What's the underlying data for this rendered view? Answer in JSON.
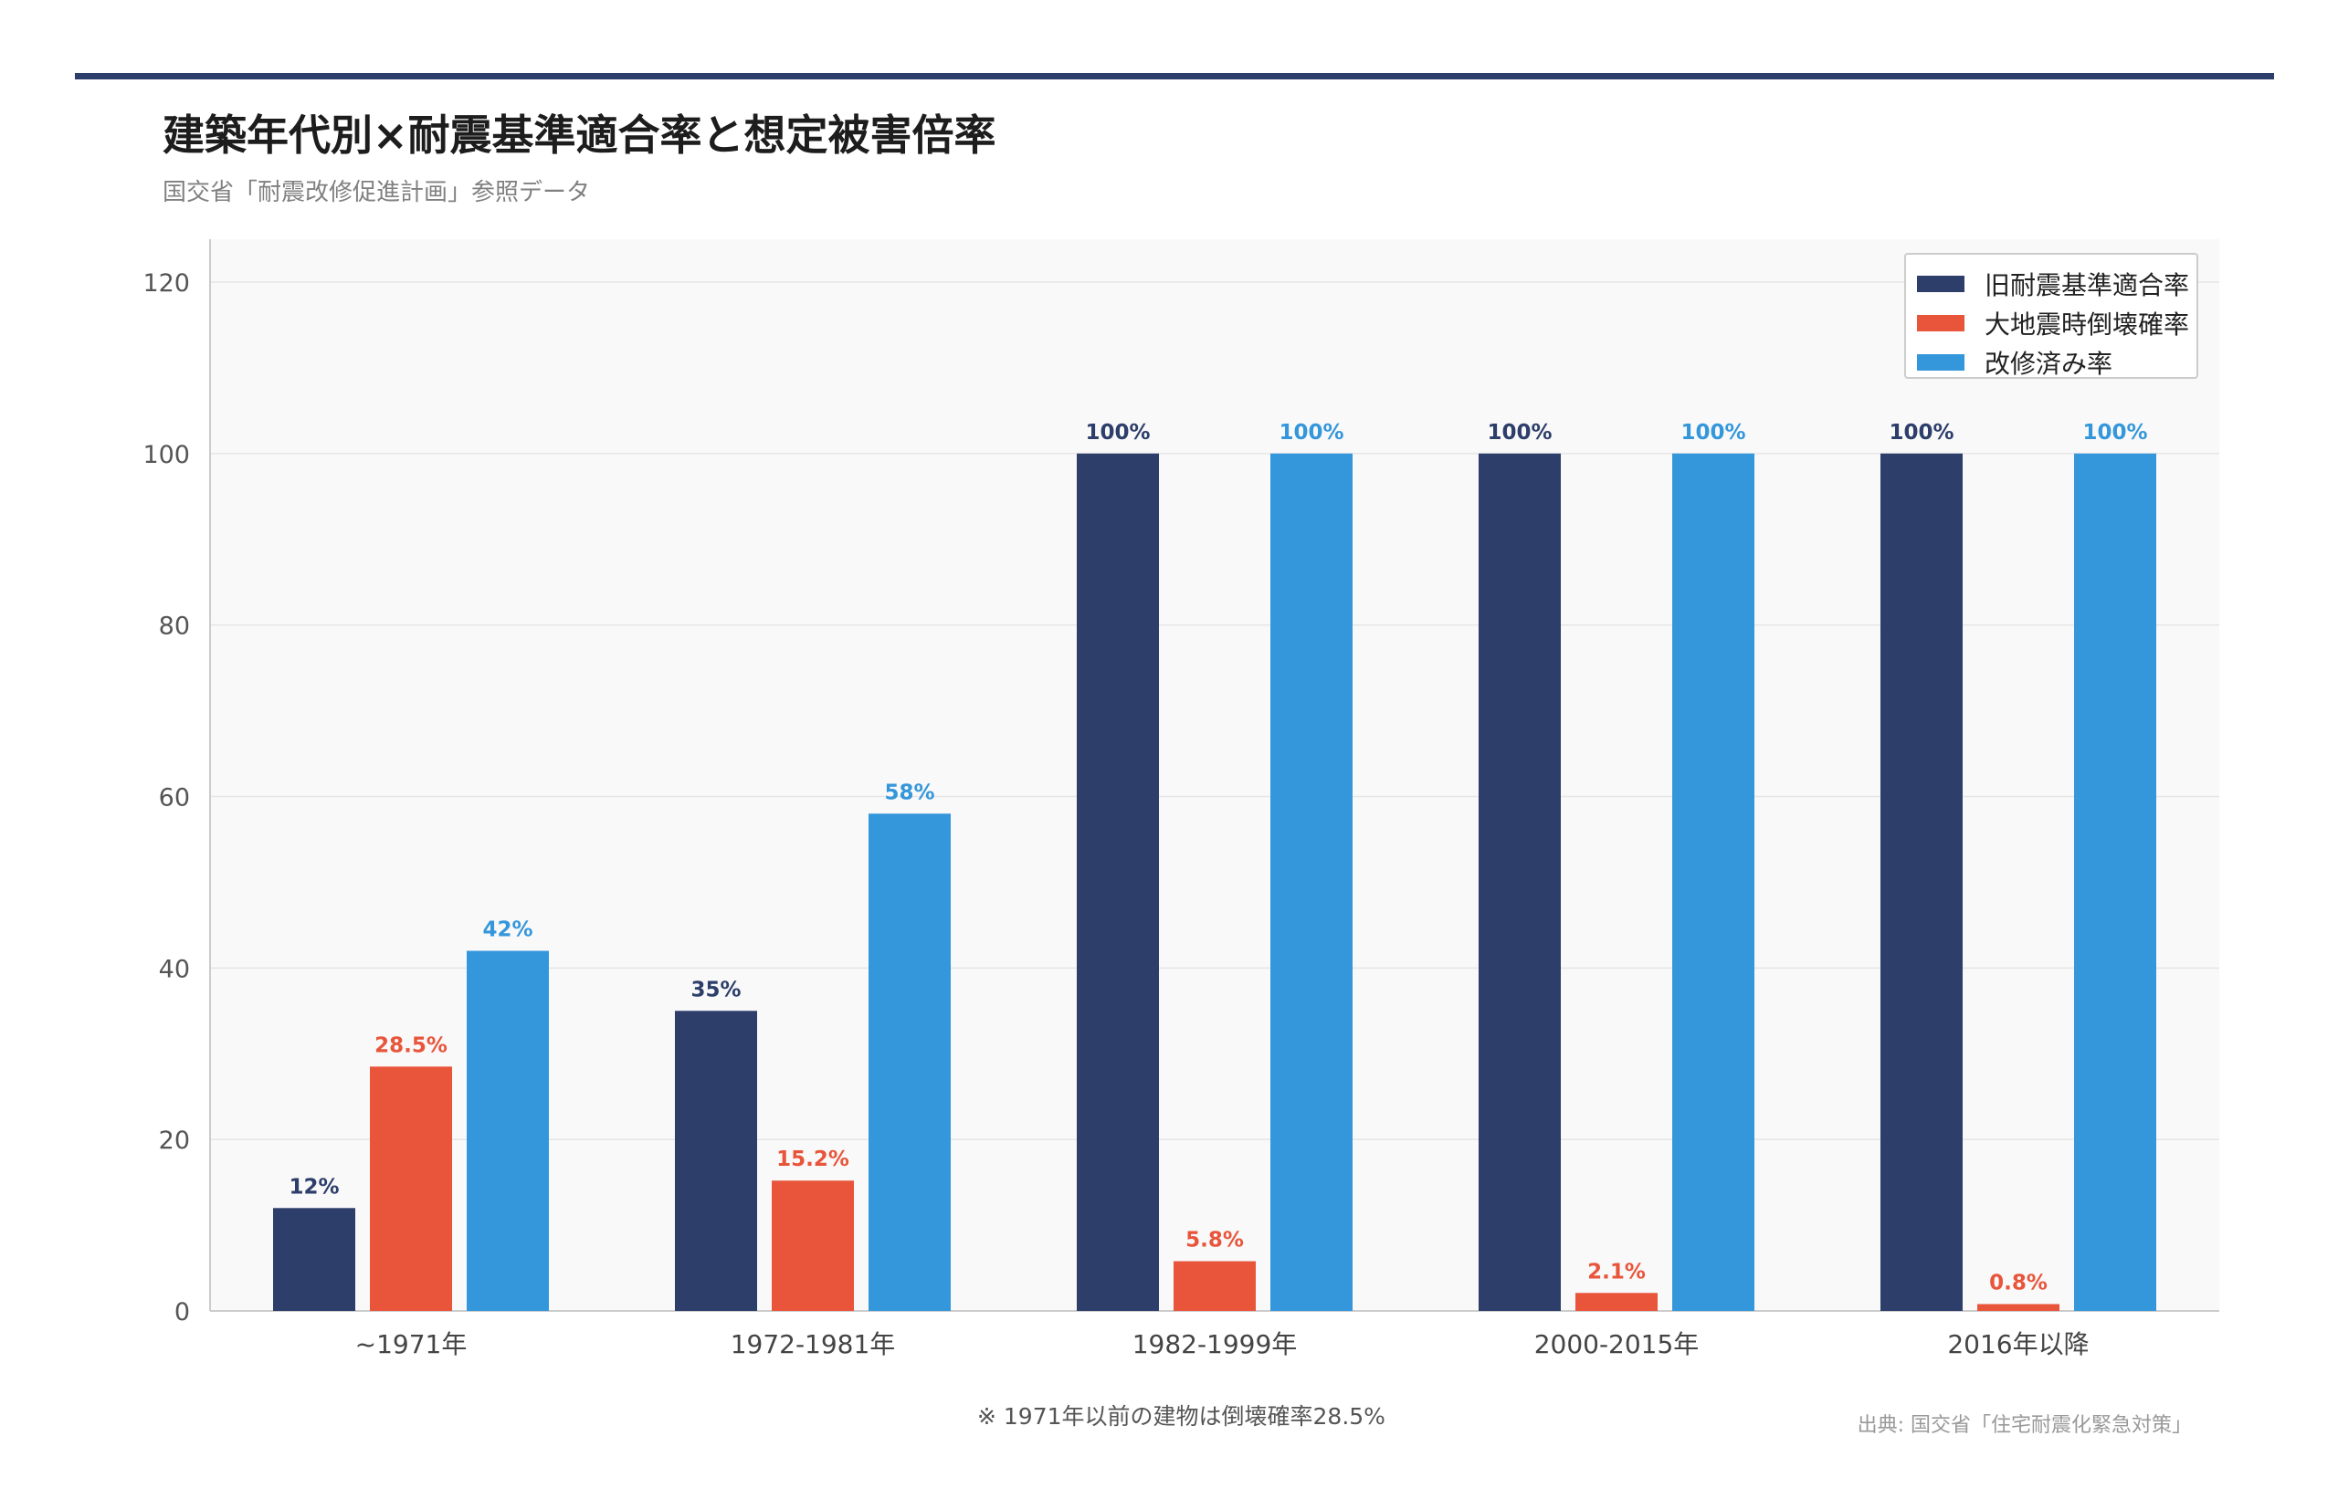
{
  "title": "建築年代別×耐震基準適合率と想定被害倍率",
  "subtitle": "国交省「耐震改修促進計画」参照データ",
  "note": "※ 1971年以前の建物は倒壊確率28.5%",
  "source": "出典: 国交省「住宅耐震化緊急対策」",
  "colors": {
    "navy": "#2d3e6b",
    "red": "#e8553b",
    "blue": "#3597db",
    "plot_bg": "#f9f9f9",
    "grid": "#e6e6e6"
  },
  "legend": [
    {
      "label": "旧耐震基準適合率",
      "color": "#2d3e6b"
    },
    {
      "label": "大地震時倒壊確率",
      "color": "#e8553b"
    },
    {
      "label": "改修済み率",
      "color": "#3597db"
    }
  ],
  "chart_data": {
    "type": "bar",
    "title": "建築年代別×耐震基準適合率と想定被害倍率",
    "categories": [
      "~1971年",
      "1972-1981年",
      "1982-1999年",
      "2000-2015年",
      "2016年以降"
    ],
    "series": [
      {
        "name": "旧耐震基準適合率",
        "values": [
          12,
          35,
          100,
          100,
          100
        ],
        "labels": [
          "12%",
          "35%",
          "100%",
          "100%",
          "100%"
        ],
        "color": "#2d3e6b"
      },
      {
        "name": "大地震時倒壊確率",
        "values": [
          28.5,
          15.2,
          5.8,
          2.1,
          0.8
        ],
        "labels": [
          "28.5%",
          "15.2%",
          "5.8%",
          "2.1%",
          "0.8%"
        ],
        "color": "#e8553b"
      },
      {
        "name": "改修済み率",
        "values": [
          42,
          58,
          100,
          100,
          100
        ],
        "labels": [
          "42%",
          "58%",
          "100%",
          "100%",
          "100%"
        ],
        "color": "#3597db"
      }
    ],
    "ylim": [
      0,
      125
    ],
    "yticks": [
      0,
      20,
      40,
      60,
      80,
      100,
      120
    ],
    "grid": true,
    "legend_position": "top-right"
  }
}
